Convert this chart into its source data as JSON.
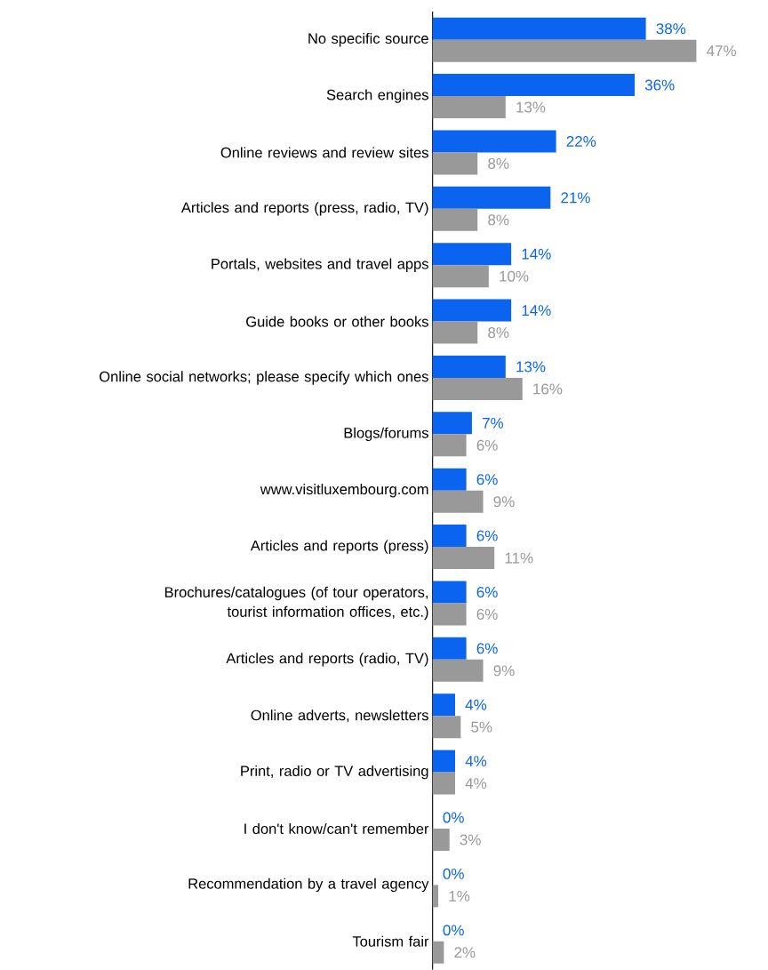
{
  "chart_data": {
    "type": "bar",
    "orientation": "horizontal",
    "categories": [
      "No specific source",
      "Search engines",
      "Online reviews and review sites",
      "Articles and reports (press, radio, TV)",
      "Portals, websites and travel apps",
      "Guide books or other books",
      "Online social networks; please specify which ones",
      "Blogs/forums",
      "www.visitluxembourg.com",
      "Articles and reports (press)",
      "Brochures/catalogues (of tour operators, tourist information offices, etc.)",
      "Articles and reports (radio, TV)",
      "Online adverts, newsletters",
      "Print, radio or TV advertising",
      "I don't know/can't remember",
      "Recommendation by a travel agency",
      "Tourism fair"
    ],
    "series": [
      {
        "color": "#0a64f0",
        "values": [
          38,
          36,
          22,
          21,
          14,
          14,
          13,
          7,
          6,
          6,
          6,
          6,
          4,
          4,
          0,
          0,
          0
        ],
        "value_labels": [
          "38%",
          "36%",
          "22%",
          "21%",
          "14%",
          "14%",
          "13%",
          "7%",
          "6%",
          "6%",
          "6%",
          "6%",
          "4%",
          "4%",
          "0%",
          "0%",
          "0%"
        ]
      },
      {
        "color": "#999999",
        "values": [
          47,
          13,
          8,
          8,
          10,
          8,
          16,
          6,
          9,
          11,
          6,
          9,
          5,
          4,
          3,
          1,
          2
        ],
        "value_labels": [
          "47%",
          "13%",
          "8%",
          "8%",
          "10%",
          "8%",
          "16%",
          "6%",
          "9%",
          "11%",
          "6%",
          "9%",
          "5%",
          "4%",
          "3%",
          "1%",
          "2%"
        ]
      }
    ]
  }
}
